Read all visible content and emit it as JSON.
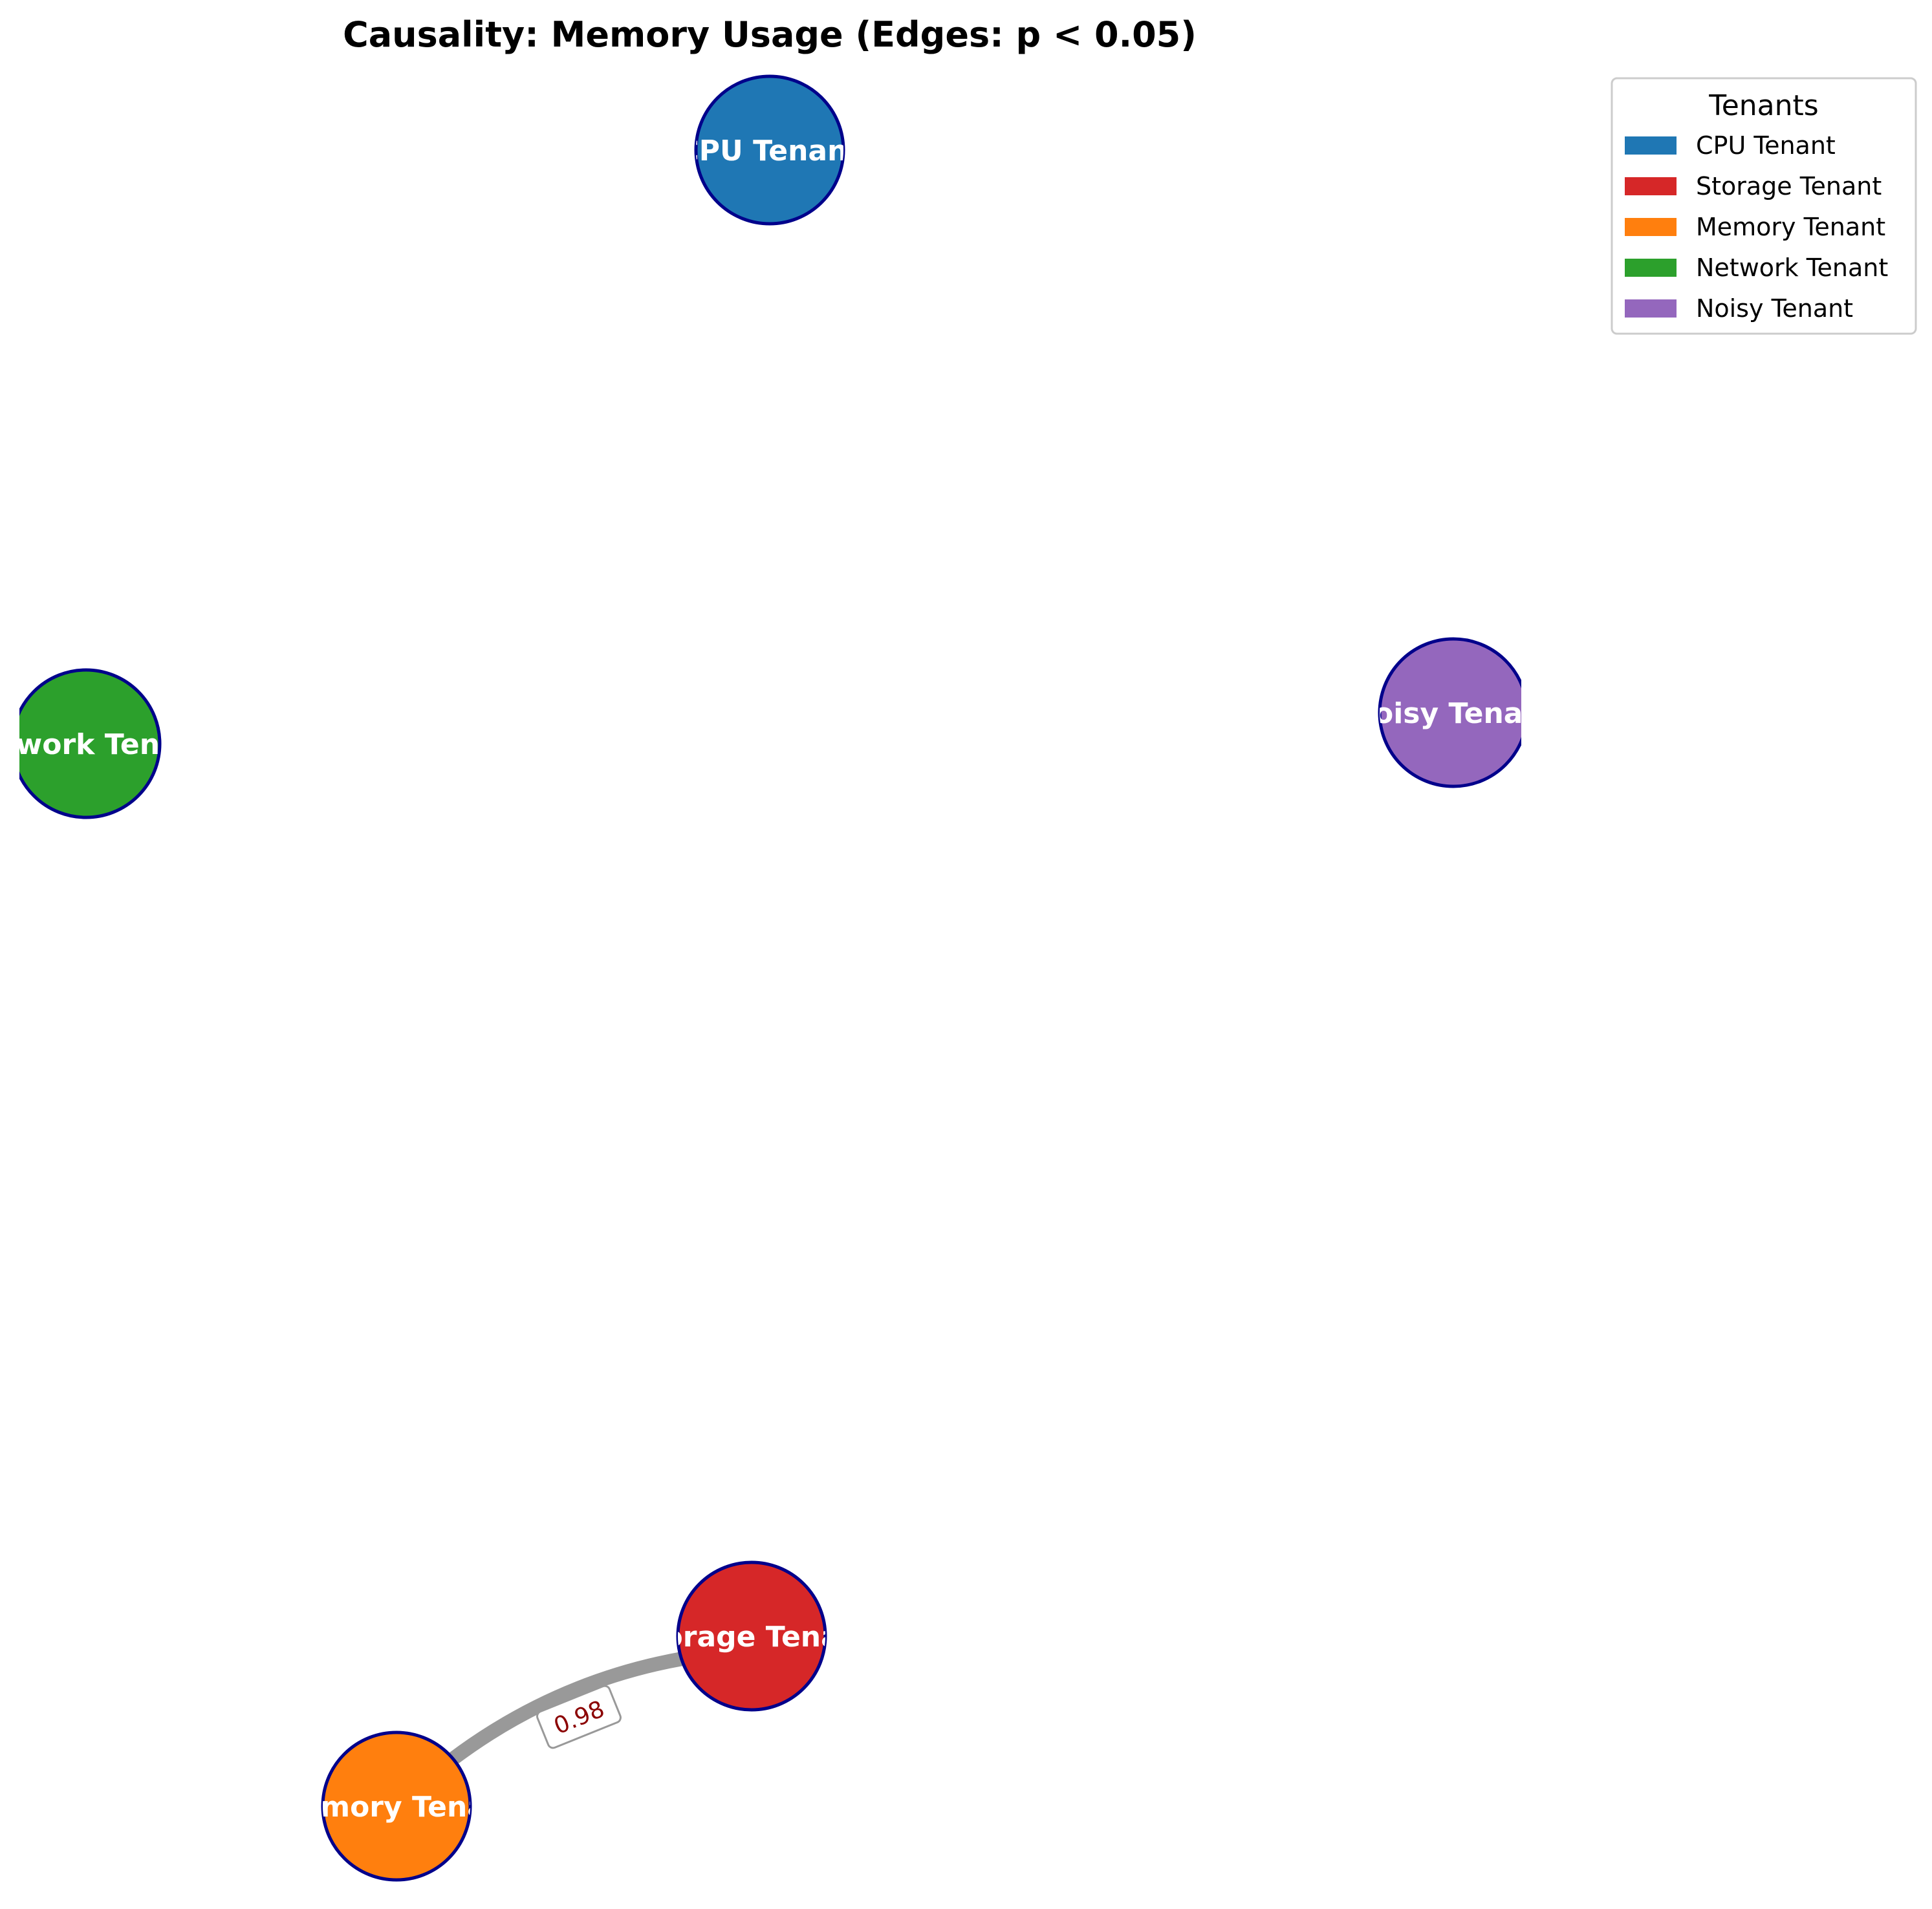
{
  "title": "Causality: Memory Usage (Edges: p < 0.05)",
  "colors": {
    "node_border": "#00008b",
    "edge": "#999999",
    "edge_label_text": "#8b0000",
    "edge_label_border": "#999999"
  },
  "nodes": [
    {
      "id": "cpu",
      "label": "CPU Tenant",
      "color": "#1f77b4"
    },
    {
      "id": "network",
      "label": "Network Tenant",
      "color": "#2ca02c"
    },
    {
      "id": "noisy",
      "label": "Noisy Tenant",
      "color": "#9467bd"
    },
    {
      "id": "storage",
      "label": "Storage Tenant",
      "color": "#d62728"
    },
    {
      "id": "memory",
      "label": "Memory Tenant",
      "color": "#ff7f0e"
    }
  ],
  "edges": [
    {
      "source": "memory",
      "target": "storage",
      "weight": "0.98"
    }
  ],
  "legend": {
    "title": "Tenants",
    "placement": "top-right",
    "items": [
      {
        "label": "CPU Tenant",
        "color": "#1f77b4"
      },
      {
        "label": "Storage Tenant",
        "color": "#d62728"
      },
      {
        "label": "Memory Tenant",
        "color": "#ff7f0e"
      },
      {
        "label": "Network Tenant",
        "color": "#2ca02c"
      },
      {
        "label": "Noisy Tenant",
        "color": "#9467bd"
      }
    ]
  }
}
